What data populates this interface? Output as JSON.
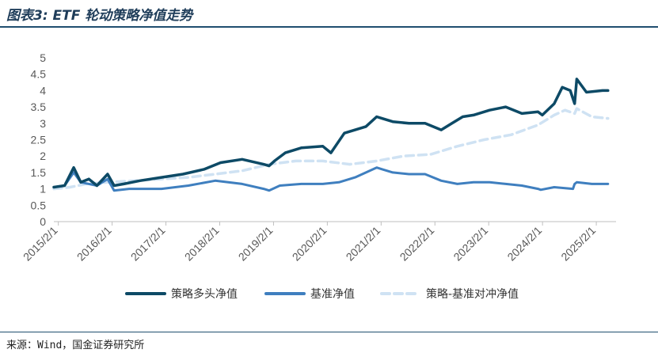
{
  "title": "图表3: ETF 轮动策略净值走势",
  "source": "来源：Wind，国金证券研究所",
  "colors": {
    "strategy": "#0d4a66",
    "benchmark": "#3f7fbf",
    "excess": "#cfe2f3",
    "axis": "#bfbfbf"
  },
  "chart_data": {
    "type": "line",
    "title": "",
    "xlabel": "",
    "ylabel": "",
    "ylim": [
      0,
      5
    ],
    "yticks": [
      "0",
      "0.5",
      "1",
      "1.5",
      "2",
      "2.5",
      "3",
      "3.5",
      "4",
      "4.5",
      "5"
    ],
    "xticks": [
      "2015/2/1",
      "2016/2/1",
      "2017/2/1",
      "2018/2/1",
      "2019/2/1",
      "2020/2/1",
      "2021/2/1",
      "2022/2/1",
      "2023/2/1",
      "2024/2/1",
      "2025/2/1"
    ],
    "grid": false,
    "legend": "bottom",
    "series": [
      {
        "name": "策略多头净值",
        "style": "solid",
        "x": [
          2015.0,
          2015.2,
          2015.37,
          2015.5,
          2015.65,
          2015.8,
          2016.0,
          2016.12,
          2016.3,
          2016.6,
          2017.0,
          2017.4,
          2017.8,
          2018.1,
          2018.5,
          2018.9,
          2019.0,
          2019.1,
          2019.3,
          2019.6,
          2020.0,
          2020.15,
          2020.4,
          2020.6,
          2020.8,
          2021.0,
          2021.1,
          2021.3,
          2021.6,
          2021.9,
          2022.2,
          2022.4,
          2022.6,
          2022.8,
          2023.1,
          2023.4,
          2023.7,
          2024.0,
          2024.08,
          2024.3,
          2024.45,
          2024.6,
          2024.68,
          2024.72,
          2024.9,
          2025.2,
          2025.3
        ],
        "values": [
          1.05,
          1.1,
          1.65,
          1.2,
          1.3,
          1.1,
          1.45,
          1.1,
          1.15,
          1.25,
          1.35,
          1.45,
          1.6,
          1.8,
          1.9,
          1.75,
          1.7,
          1.85,
          2.1,
          2.25,
          2.3,
          2.1,
          2.7,
          2.8,
          2.9,
          3.2,
          3.15,
          3.05,
          3.0,
          3.0,
          2.8,
          3.0,
          3.2,
          3.25,
          3.4,
          3.5,
          3.3,
          3.35,
          3.25,
          3.6,
          4.1,
          4.0,
          3.6,
          4.35,
          3.95,
          4.0,
          4.0
        ]
      },
      {
        "name": "基准净值",
        "style": "solid",
        "x": [
          2015.0,
          2015.2,
          2015.37,
          2015.5,
          2015.8,
          2016.0,
          2016.12,
          2016.4,
          2017.0,
          2017.5,
          2018.0,
          2018.5,
          2018.9,
          2019.0,
          2019.2,
          2019.6,
          2020.0,
          2020.3,
          2020.6,
          2021.0,
          2021.1,
          2021.3,
          2021.6,
          2021.9,
          2022.2,
          2022.5,
          2022.8,
          2023.1,
          2023.4,
          2023.7,
          2024.0,
          2024.05,
          2024.3,
          2024.65,
          2024.68,
          2024.72,
          2025.0,
          2025.3
        ],
        "values": [
          1.05,
          1.1,
          1.5,
          1.2,
          1.1,
          1.3,
          0.95,
          1.0,
          1.0,
          1.1,
          1.25,
          1.15,
          1.0,
          0.95,
          1.1,
          1.15,
          1.15,
          1.2,
          1.35,
          1.65,
          1.6,
          1.5,
          1.45,
          1.45,
          1.25,
          1.15,
          1.2,
          1.2,
          1.15,
          1.1,
          1.0,
          0.97,
          1.05,
          1.0,
          1.15,
          1.2,
          1.15,
          1.15
        ]
      },
      {
        "name": "策略-基准对冲净值",
        "style": "dashed",
        "x": [
          2015.0,
          2015.3,
          2015.6,
          2016.0,
          2016.5,
          2017.0,
          2017.5,
          2018.0,
          2018.5,
          2019.0,
          2019.5,
          2020.0,
          2020.5,
          2021.0,
          2021.5,
          2022.0,
          2022.5,
          2023.0,
          2023.5,
          2024.0,
          2024.3,
          2024.5,
          2024.68,
          2024.72,
          2025.0,
          2025.3
        ],
        "values": [
          1.0,
          1.05,
          1.15,
          1.2,
          1.25,
          1.3,
          1.35,
          1.45,
          1.55,
          1.75,
          1.85,
          1.85,
          1.75,
          1.85,
          2.0,
          2.05,
          2.3,
          2.5,
          2.65,
          2.95,
          3.25,
          3.4,
          3.3,
          3.45,
          3.2,
          3.15
        ]
      }
    ]
  }
}
